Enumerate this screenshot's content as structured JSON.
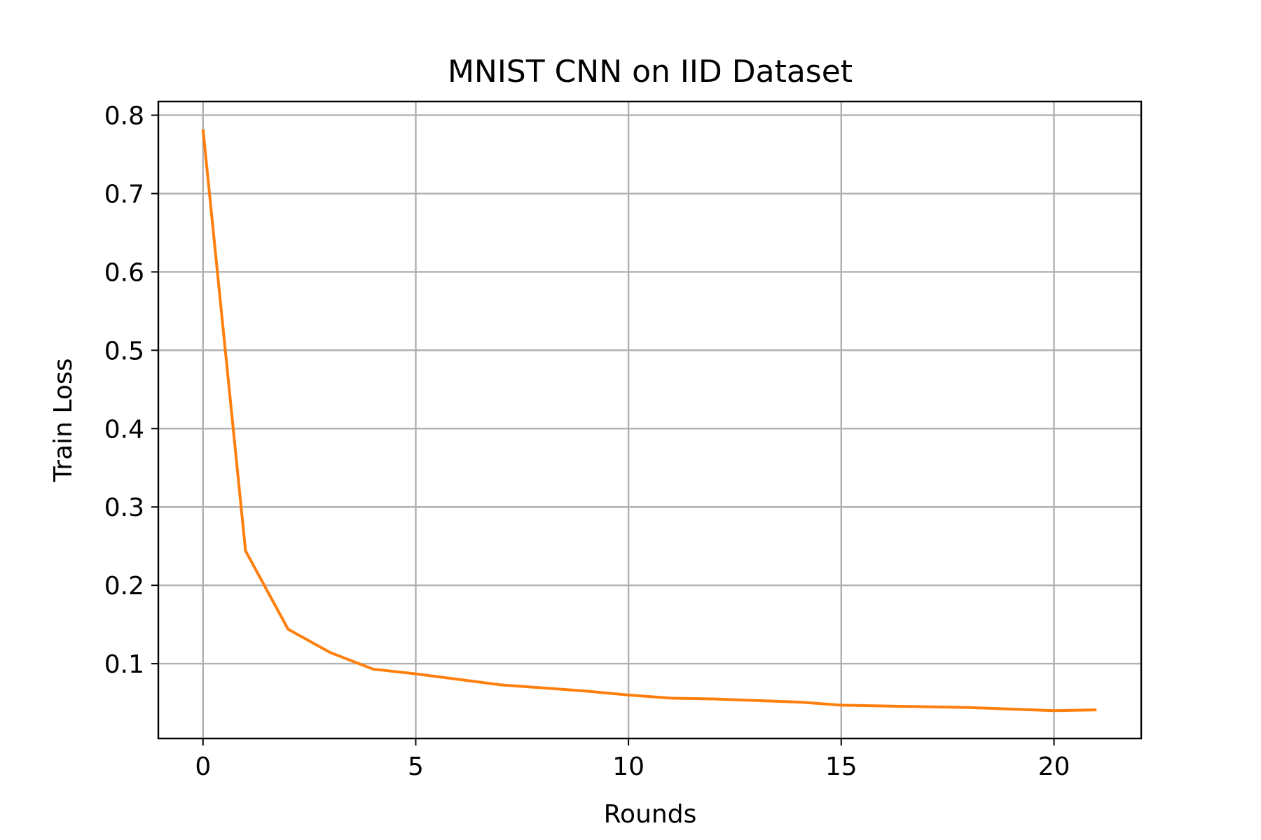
{
  "chart_data": {
    "type": "line",
    "title": "MNIST CNN on IID Dataset",
    "xlabel": "Rounds",
    "ylabel": "Train Loss",
    "xlim": [
      -1.05,
      22.05
    ],
    "ylim": [
      0.0045,
      0.8175
    ],
    "xticks": [
      0,
      5,
      10,
      15,
      20
    ],
    "yticks": [
      0.1,
      0.2,
      0.3,
      0.4,
      0.5,
      0.6,
      0.7,
      0.8
    ],
    "grid": true,
    "legend": "none",
    "series": [
      {
        "color": "#ff7f0e",
        "x": [
          0,
          1,
          2,
          3,
          4,
          5,
          6,
          7,
          8,
          9,
          10,
          11,
          12,
          13,
          14,
          15,
          16,
          17,
          18,
          19,
          20,
          21
        ],
        "y": [
          0.782,
          0.244,
          0.144,
          0.114,
          0.093,
          0.087,
          0.08,
          0.073,
          0.069,
          0.065,
          0.06,
          0.056,
          0.055,
          0.053,
          0.051,
          0.047,
          0.046,
          0.045,
          0.044,
          0.042,
          0.04,
          0.041
        ]
      }
    ]
  }
}
